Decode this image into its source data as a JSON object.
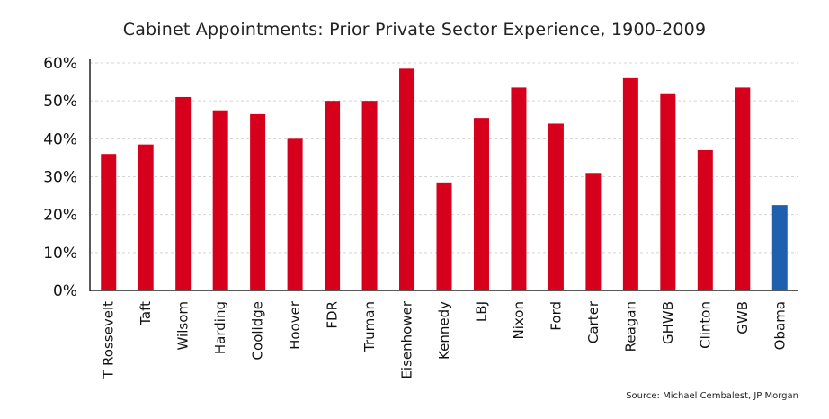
{
  "chart_data": {
    "type": "bar",
    "title": "Cabinet Appointments: Prior Private Sector Experience, 1900-2009",
    "source": "Source: Michael Cembalest, JP Morgan",
    "xlabel": "",
    "ylabel": "",
    "ylim": [
      0,
      60
    ],
    "yticks": [
      "0%",
      "10%",
      "20%",
      "30%",
      "40%",
      "50%",
      "60%"
    ],
    "grid": true,
    "categories": [
      "T Rossevelt",
      "Taft",
      "Wilsom",
      "Harding",
      "Coolidge",
      "Hoover",
      "FDR",
      "Truman",
      "Eisenhower",
      "Kennedy",
      "LBJ",
      "Nixon",
      "Ford",
      "Carter",
      "Reagan",
      "GHWB",
      "Clinton",
      "GWB",
      "Obama"
    ],
    "values": [
      36,
      38.5,
      51,
      47.5,
      46.5,
      40,
      50,
      50,
      58.5,
      28.5,
      45.5,
      53.5,
      44,
      31,
      56,
      52,
      37,
      53.5,
      22.5
    ],
    "colors": [
      "#d6001c",
      "#d6001c",
      "#d6001c",
      "#d6001c",
      "#d6001c",
      "#d6001c",
      "#d6001c",
      "#d6001c",
      "#d6001c",
      "#d6001c",
      "#d6001c",
      "#d6001c",
      "#d6001c",
      "#d6001c",
      "#d6001c",
      "#d6001c",
      "#d6001c",
      "#d6001c",
      "#1f5fae"
    ]
  }
}
